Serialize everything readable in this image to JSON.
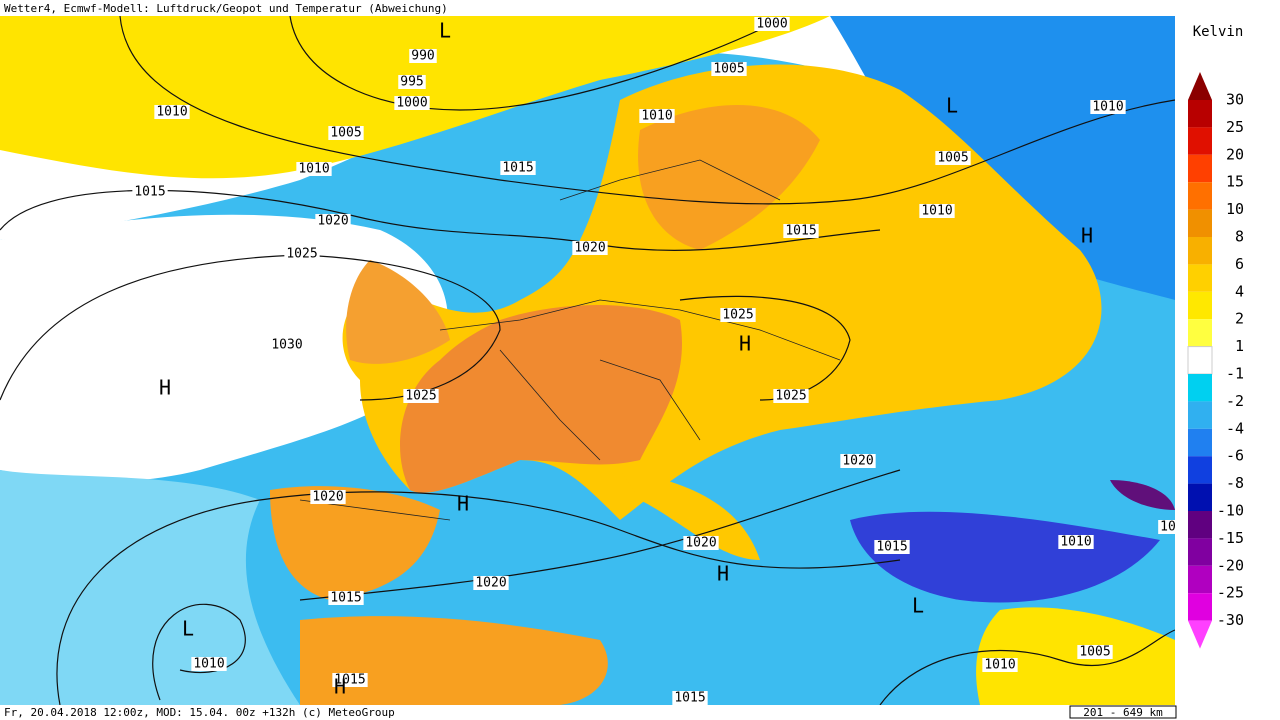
{
  "header": {
    "title": "Wetter4, Ecmwf-Modell: Luftdruck/Geopot und Temperatur (Abweichung)"
  },
  "footer": {
    "text": "Fr, 20.04.2018 12:00z, MOD: 15.04. 00z +132h (c) MeteoGroup",
    "scale": "201 - 649 km"
  },
  "legend": {
    "unit": "Kelvin",
    "labels": [
      30,
      25,
      20,
      15,
      10,
      8,
      6,
      4,
      2,
      1,
      -1,
      -2,
      -4,
      -6,
      -8,
      -10,
      -15,
      -20,
      -25,
      -30
    ]
  },
  "isobar_labels": [
    "1000",
    "990",
    "995",
    "1000",
    "1005",
    "1010",
    "1010",
    "1010",
    "1005",
    "1005",
    "1010",
    "1015",
    "1015",
    "1010",
    "1020",
    "1015",
    "1020",
    "1025",
    "1030",
    "1025",
    "1025",
    "1025",
    "1020",
    "1020",
    "1015",
    "1010",
    "1020",
    "1020",
    "1015",
    "1010",
    "1010",
    "1005",
    "1015",
    "1015",
    "10"
  ],
  "pressure_centers": [
    "L",
    "L",
    "H",
    "H",
    "H",
    "H",
    "H",
    "L",
    "L",
    "H"
  ]
}
